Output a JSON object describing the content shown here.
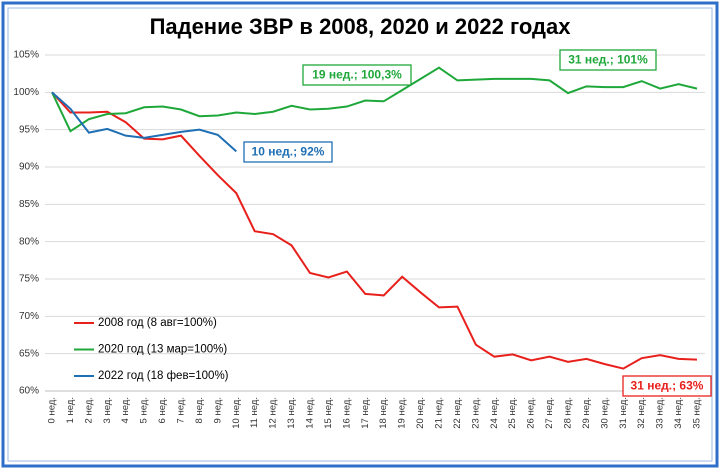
{
  "chart_data": {
    "type": "line",
    "title": "Падение ЗВР в 2008, 2020 и 2022 годах",
    "categories": [
      "0 нед.",
      "1 нед.",
      "2 нед.",
      "3 нед.",
      "4 нед.",
      "5 нед.",
      "6 нед.",
      "7 нед.",
      "8 нед.",
      "9 нед.",
      "10 нед.",
      "11 нед.",
      "12 нед.",
      "13 нед.",
      "14 нед.",
      "15 нед.",
      "16 нед.",
      "17 нед.",
      "18 нед.",
      "19 нед.",
      "20 нед.",
      "21 нед.",
      "22 нед.",
      "23 нед.",
      "24 нед.",
      "25 нед.",
      "26 нед.",
      "27 нед.",
      "28 нед.",
      "29 нед.",
      "30 нед.",
      "31 нед.",
      "32 нед.",
      "33 нед.",
      "34 нед.",
      "35 нед."
    ],
    "series": [
      {
        "name": "2008 год (8 авг=100%)",
        "color": "#e8201c",
        "values": [
          100,
          97.3,
          97.3,
          97.4,
          96,
          93.8,
          93.7,
          94.2,
          91.5,
          88.9,
          86.5,
          81.4,
          81,
          79.5,
          75.8,
          75.2,
          76,
          73,
          72.8,
          75.3,
          73.2,
          71.2,
          71.3,
          66.2,
          64.6,
          64.9,
          64.1,
          64.6,
          63.9,
          64.3,
          63.6,
          63,
          64.4,
          64.8,
          64.3,
          64.2
        ]
      },
      {
        "name": "2020 год (13 мар=100%)",
        "color": "#1fa83a",
        "values": [
          100,
          94.8,
          96.4,
          97.1,
          97.2,
          98,
          98.1,
          97.7,
          96.8,
          96.9,
          97.3,
          97.1,
          97.4,
          98.2,
          97.7,
          97.8,
          98.1,
          98.9,
          98.8,
          100.3,
          101.8,
          103.3,
          101.6,
          101.7,
          101.8,
          101.8,
          101.8,
          101.6,
          99.9,
          100.8,
          100.7,
          100.7,
          101.5,
          100.5,
          101.1,
          100.5
        ]
      },
      {
        "name": "2022 год (18 фев=100%)",
        "color": "#1f6fb5",
        "values": [
          100,
          97.8,
          94.6,
          95.1,
          94.2,
          93.9,
          94.3,
          94.7,
          95,
          94.3,
          92.1,
          null,
          null,
          null,
          null,
          null,
          null,
          null,
          null,
          null,
          null,
          null,
          null,
          null,
          null,
          null,
          null,
          null,
          null,
          null,
          null,
          null,
          null,
          null,
          null,
          null
        ]
      }
    ],
    "annotations": [
      {
        "text": "19 нед.; 100,3%",
        "color": "#1fa83a"
      },
      {
        "text": "31 нед.; 101%",
        "color": "#1fa83a"
      },
      {
        "text": "10 нед.; 92%",
        "color": "#1f6fb5"
      },
      {
        "text": "31 нед.; 63%",
        "color": "#e8201c"
      }
    ],
    "ylim": [
      60,
      105
    ],
    "yticks": [
      {
        "value": 60,
        "label": "60%"
      },
      {
        "value": 65,
        "label": "65%"
      },
      {
        "value": 70,
        "label": "70%"
      },
      {
        "value": 75,
        "label": "75%"
      },
      {
        "value": 80,
        "label": "80%"
      },
      {
        "value": 85,
        "label": "85%"
      },
      {
        "value": 90,
        "label": "90%"
      },
      {
        "value": 95,
        "label": "95%"
      },
      {
        "value": 100,
        "label": "100%"
      },
      {
        "value": 105,
        "label": "105%"
      }
    ],
    "grid": true
  }
}
